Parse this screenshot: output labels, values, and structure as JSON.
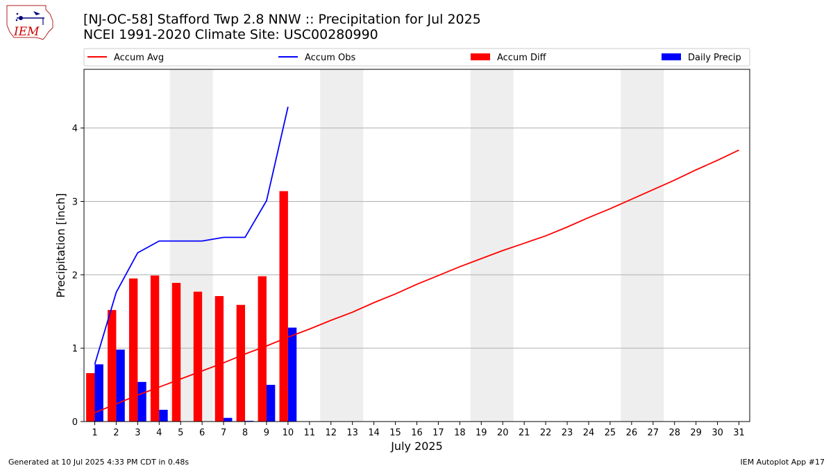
{
  "header": {
    "title_line1": "[NJ-OC-58] Stafford Twp 2.8 NNW :: Precipitation for Jul 2025",
    "title_line2": "NCEI 1991-2020 Climate Site: USC00280990",
    "logo_text": "IEM"
  },
  "footer": {
    "generated": "Generated at 10 Jul 2025 4:33 PM CDT in 0.48s",
    "app": "IEM Autoplot App #17"
  },
  "chart_data": {
    "type": "bar",
    "xlabel": "July 2025",
    "ylabel": "Precipitation [inch]",
    "xlim": [
      0.5,
      31.5
    ],
    "ylim": [
      0,
      4.8
    ],
    "yticks": [
      0,
      1,
      2,
      3,
      4
    ],
    "categories": [
      "1",
      "2",
      "3",
      "4",
      "5",
      "6",
      "7",
      "8",
      "9",
      "10",
      "11",
      "12",
      "13",
      "14",
      "15",
      "16",
      "17",
      "18",
      "19",
      "20",
      "21",
      "22",
      "23",
      "24",
      "25",
      "26",
      "27",
      "28",
      "29",
      "30",
      "31"
    ],
    "weekend_shading": [
      [
        4.5,
        6.5
      ],
      [
        11.5,
        13.5
      ],
      [
        18.5,
        20.5
      ],
      [
        25.5,
        27.5
      ]
    ],
    "grid": "y",
    "legend_position": "top",
    "colors": {
      "accum_avg": "#ff0000",
      "accum_obs": "#0000ff",
      "accum_diff": "#ff0000",
      "daily_precip": "#0000ff",
      "weekend": "#eeeeee",
      "grid": "#b0b0b0"
    },
    "series": [
      {
        "name": "Accum Avg",
        "kind": "line",
        "x": [
          1,
          2,
          3,
          4,
          5,
          6,
          7,
          8,
          9,
          10,
          11,
          12,
          13,
          14,
          15,
          16,
          17,
          18,
          19,
          20,
          21,
          22,
          23,
          24,
          25,
          26,
          27,
          28,
          29,
          30,
          31
        ],
        "values": [
          0.12,
          0.24,
          0.36,
          0.47,
          0.58,
          0.69,
          0.8,
          0.92,
          1.03,
          1.15,
          1.26,
          1.38,
          1.49,
          1.62,
          1.74,
          1.87,
          1.99,
          2.11,
          2.22,
          2.33,
          2.43,
          2.53,
          2.65,
          2.78,
          2.9,
          3.03,
          3.16,
          3.29,
          3.43,
          3.56,
          3.7
        ]
      },
      {
        "name": "Accum Obs",
        "kind": "line",
        "x": [
          1,
          2,
          3,
          4,
          5,
          6,
          7,
          8,
          9,
          10
        ],
        "values": [
          0.78,
          1.76,
          2.3,
          2.46,
          2.46,
          2.46,
          2.51,
          2.51,
          3.01,
          4.29
        ]
      },
      {
        "name": "Accum Diff",
        "kind": "bar",
        "x": [
          1,
          2,
          3,
          4,
          5,
          6,
          7,
          8,
          9,
          10
        ],
        "values": [
          0.66,
          1.52,
          1.95,
          1.99,
          1.89,
          1.77,
          1.71,
          1.59,
          1.98,
          3.14
        ]
      },
      {
        "name": "Daily Precip",
        "kind": "bar",
        "x": [
          1,
          2,
          3,
          4,
          5,
          6,
          7,
          8,
          9,
          10
        ],
        "values": [
          0.78,
          0.98,
          0.54,
          0.16,
          0.0,
          0.0,
          0.05,
          0.01,
          0.5,
          1.28
        ]
      }
    ]
  }
}
